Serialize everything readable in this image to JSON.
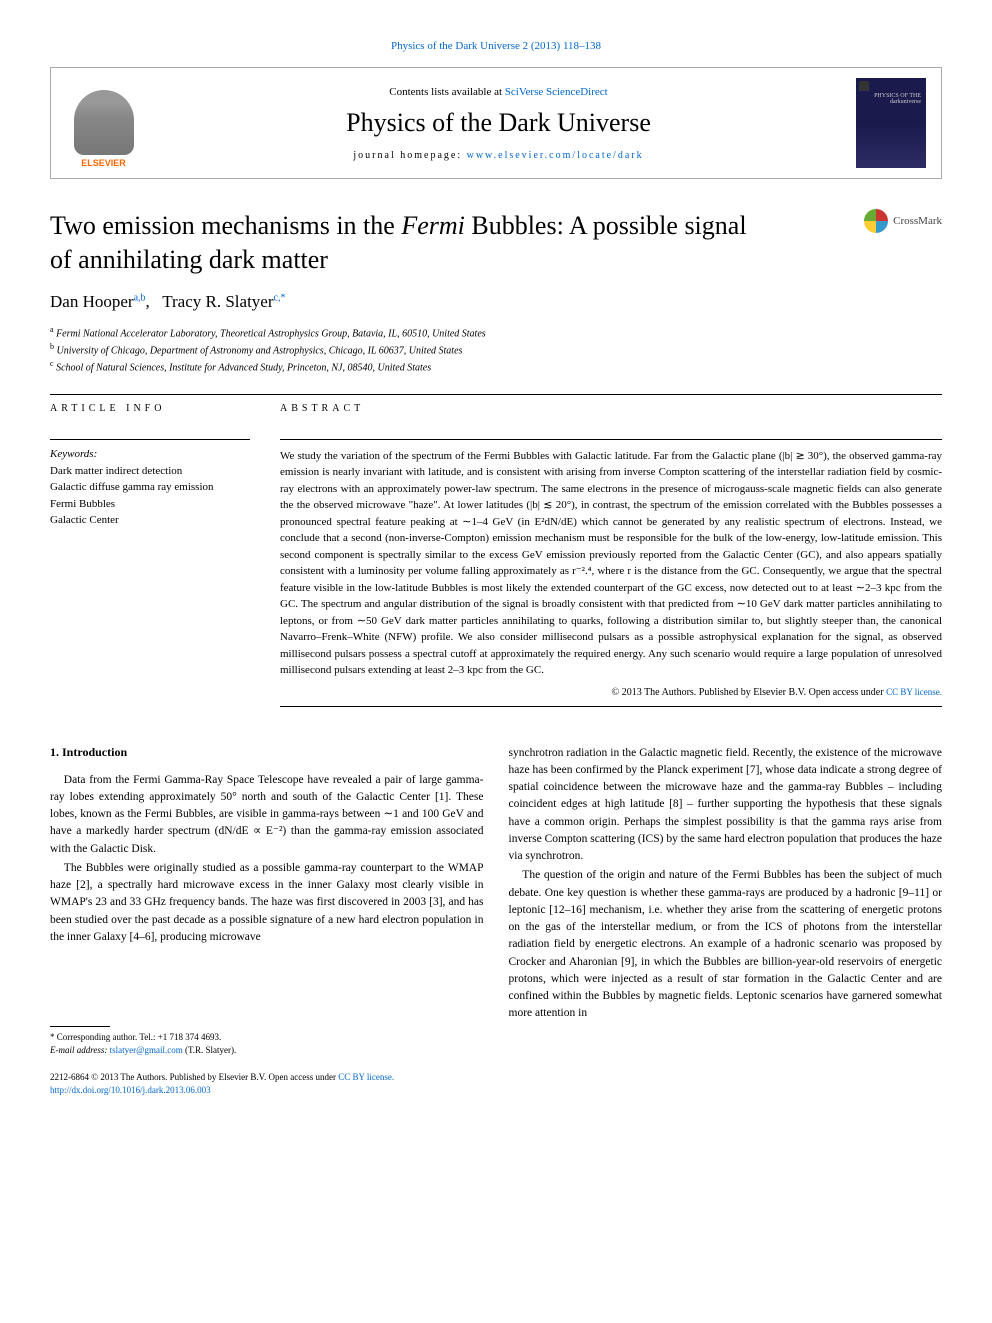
{
  "header": {
    "top_link": "Physics of the Dark Universe 2 (2013) 118–138",
    "contents_prefix": "Contents lists available at ",
    "contents_link": "SciVerse ScienceDirect",
    "journal_title": "Physics of the Dark Universe",
    "homepage_prefix": "journal homepage: ",
    "homepage_url": "www.elsevier.com/locate/dark",
    "elsevier_label": "ELSEVIER",
    "cover_text": "PHYSICS OF THE darkuniverse"
  },
  "crossmark": "CrossMark",
  "title": {
    "line1_pre": "Two emission mechanisms in the ",
    "line1_italic": "Fermi",
    "line1_post": " Bubbles: A possible signal",
    "line2": "of annihilating dark matter"
  },
  "authors": {
    "a1_name": "Dan Hooper",
    "a1_aff": "a,b",
    "a2_name": "Tracy R. Slatyer",
    "a2_aff": "c,*"
  },
  "affiliations": {
    "a": "Fermi National Accelerator Laboratory, Theoretical Astrophysics Group, Batavia, IL, 60510, United States",
    "b": "University of Chicago, Department of Astronomy and Astrophysics, Chicago, IL 60637, United States",
    "c": "School of Natural Sciences, Institute for Advanced Study, Princeton, NJ, 08540, United States"
  },
  "labels": {
    "article_info": "ARTICLE INFO",
    "abstract": "ABSTRACT",
    "keywords": "Keywords:"
  },
  "keywords": [
    "Dark matter indirect detection",
    "Galactic diffuse gamma ray emission",
    "Fermi Bubbles",
    "Galactic Center"
  ],
  "abstract": {
    "text": "We study the variation of the spectrum of the Fermi Bubbles with Galactic latitude. Far from the Galactic plane (|b| ≳ 30°), the observed gamma-ray emission is nearly invariant with latitude, and is consistent with arising from inverse Compton scattering of the interstellar radiation field by cosmic-ray electrons with an approximately power-law spectrum. The same electrons in the presence of microgauss-scale magnetic fields can also generate the the observed microwave \"haze\". At lower latitudes (|b| ≲ 20°), in contrast, the spectrum of the emission correlated with the Bubbles possesses a pronounced spectral feature peaking at ∼1–4 GeV (in E²dN/dE) which cannot be generated by any realistic spectrum of electrons. Instead, we conclude that a second (non-inverse-Compton) emission mechanism must be responsible for the bulk of the low-energy, low-latitude emission. This second component is spectrally similar to the excess GeV emission previously reported from the Galactic Center (GC), and also appears spatially consistent with a luminosity per volume falling approximately as r⁻².⁴, where r is the distance from the GC. Consequently, we argue that the spectral feature visible in the low-latitude Bubbles is most likely the extended counterpart of the GC excess, now detected out to at least ∼2–3 kpc from the GC. The spectrum and angular distribution of the signal is broadly consistent with that predicted from ∼10 GeV dark matter particles annihilating to leptons, or from ∼50 GeV dark matter particles annihilating to quarks, following a distribution similar to, but slightly steeper than, the canonical Navarro–Frenk–White (NFW) profile. We also consider millisecond pulsars as a possible astrophysical explanation for the signal, as observed millisecond pulsars possess a spectral cutoff at approximately the required energy. Any such scenario would require a large population of unresolved millisecond pulsars extending at least 2–3 kpc from the GC.",
    "copyright": "© 2013 The Authors. Published by Elsevier B.V. ",
    "license_text": "Open access under ",
    "license_link": "CC BY license."
  },
  "section1": {
    "heading": "1. Introduction",
    "p1": "Data from the Fermi Gamma-Ray Space Telescope have revealed a pair of large gamma-ray lobes extending approximately 50° north and south of the Galactic Center [1]. These lobes, known as the Fermi Bubbles, are visible in gamma-rays between ∼1 and 100 GeV and have a markedly harder spectrum (dN/dE ∝ E⁻²) than the gamma-ray emission associated with the Galactic Disk.",
    "p2": "The Bubbles were originally studied as a possible gamma-ray counterpart to the WMAP haze [2], a spectrally hard microwave excess in the inner Galaxy most clearly visible in WMAP's 23 and 33 GHz frequency bands. The haze was first discovered in 2003 [3], and has been studied over the past decade as a possible signature of a new hard electron population in the inner Galaxy [4–6], producing microwave",
    "p3": "synchrotron radiation in the Galactic magnetic field. Recently, the existence of the microwave haze has been confirmed by the Planck experiment [7], whose data indicate a strong degree of spatial coincidence between the microwave haze and the gamma-ray Bubbles – including coincident edges at high latitude [8] – further supporting the hypothesis that these signals have a common origin. Perhaps the simplest possibility is that the gamma rays arise from inverse Compton scattering (ICS) by the same hard electron population that produces the haze via synchrotron.",
    "p4": "The question of the origin and nature of the Fermi Bubbles has been the subject of much debate. One key question is whether these gamma-rays are produced by a hadronic [9–11] or leptonic [12–16] mechanism, i.e. whether they arise from the scattering of energetic protons on the gas of the interstellar medium, or from the ICS of photons from the interstellar radiation field by energetic electrons. An example of a hadronic scenario was proposed by Crocker and Aharonian [9], in which the Bubbles are billion-year-old reservoirs of energetic protons, which were injected as a result of star formation in the Galactic Center and are confined within the Bubbles by magnetic fields. Leptonic scenarios have garnered somewhat more attention in"
  },
  "footnotes": {
    "corresponding": "* Corresponding author. Tel.: +1 718 374 4693.",
    "email_label": "E-mail address: ",
    "email": "tslatyer@gmail.com",
    "email_suffix": " (T.R. Slatyer)."
  },
  "footer": {
    "issn": "2212-6864 © 2013 The Authors. Published by Elsevier B.V. ",
    "license_text": "Open access under ",
    "license_link": "CC BY license.",
    "doi": "http://dx.doi.org/10.1016/j.dark.2013.06.003"
  },
  "refs": {
    "r1": "1",
    "r2": "2",
    "r3": "3",
    "r46": "4–6",
    "r7": "7",
    "r8": "8",
    "r911": "9–11",
    "r1216": "12–16",
    "r9": "9"
  }
}
